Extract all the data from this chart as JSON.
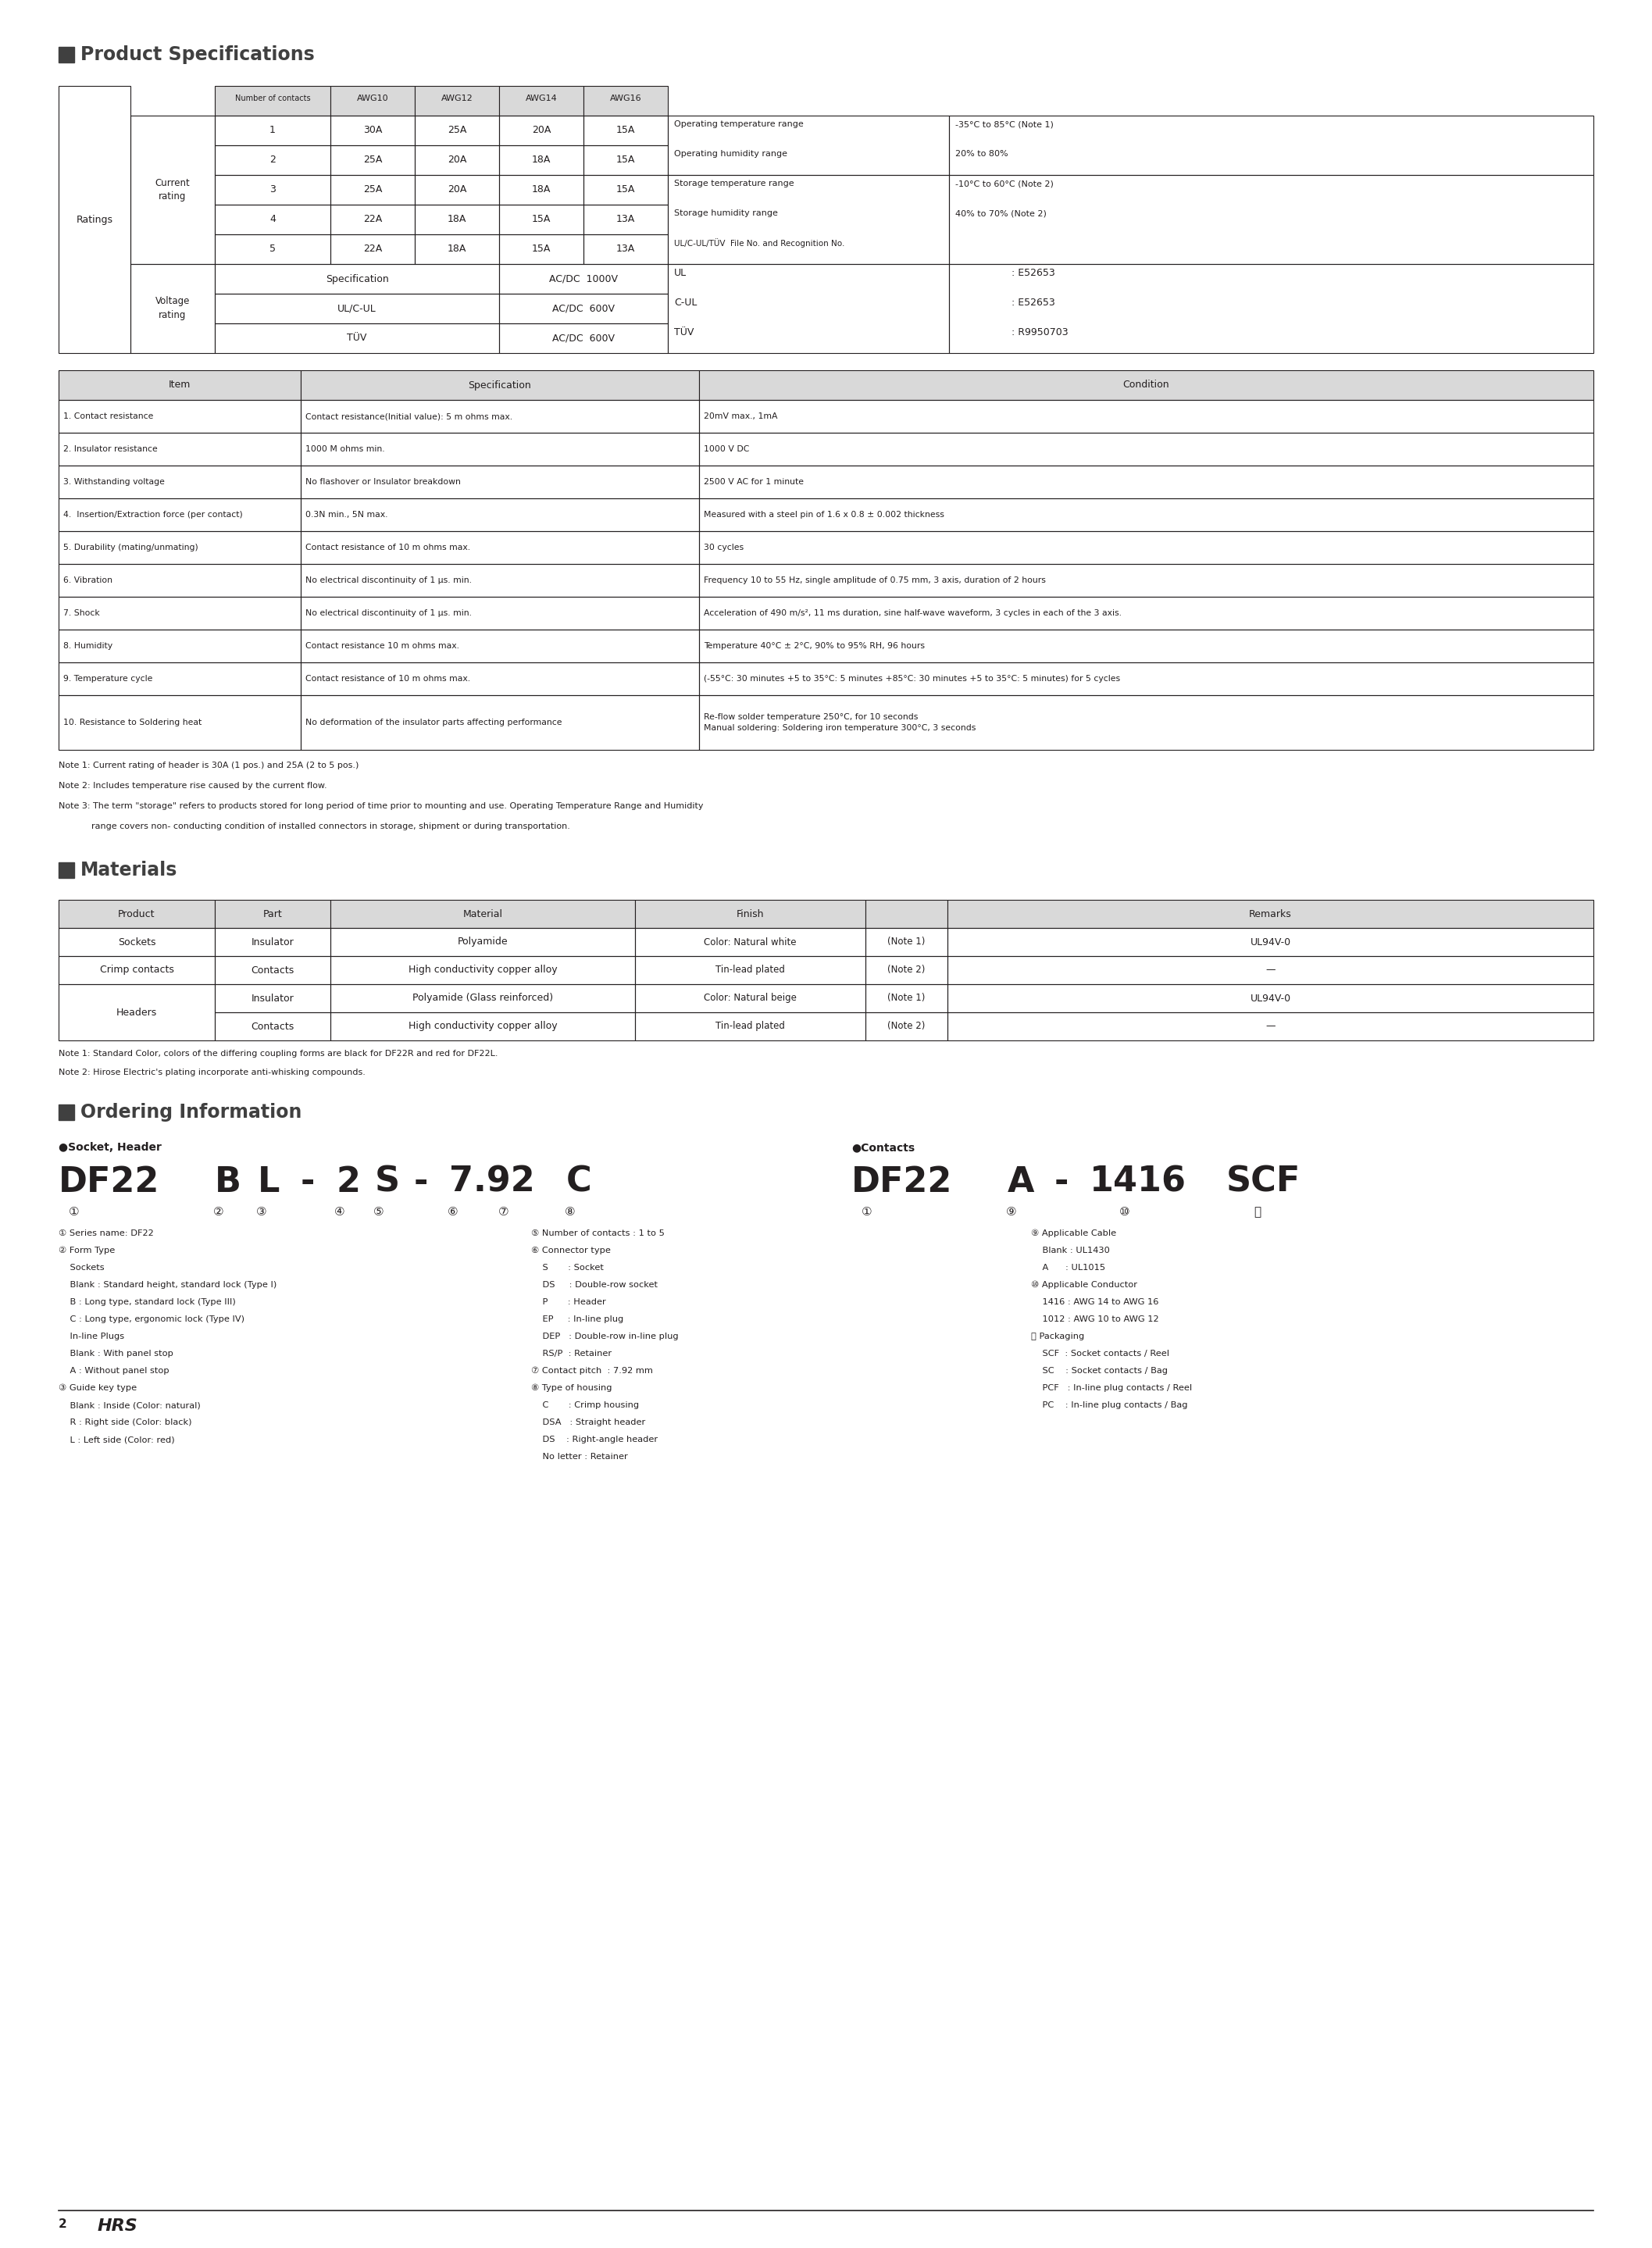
{
  "page_bg": "#ffffff",
  "text_color": "#231f20",
  "header_bg": "#d9d9d9",
  "section_header_color": "#404040",
  "title1": "Product Specifications",
  "title2": "Materials",
  "title3": "Ordering Information",
  "ratings_table": {
    "col_headers": [
      "Number of contacts",
      "AWG10",
      "AWG12",
      "AWG14",
      "AWG16"
    ],
    "current_rows": [
      [
        "1",
        "30A",
        "25A",
        "20A",
        "15A"
      ],
      [
        "2",
        "25A",
        "20A",
        "18A",
        "15A"
      ],
      [
        "3",
        "25A",
        "20A",
        "18A",
        "15A"
      ],
      [
        "4",
        "22A",
        "18A",
        "15A",
        "13A"
      ],
      [
        "5",
        "22A",
        "18A",
        "15A",
        "13A"
      ]
    ],
    "voltage_rows": [
      [
        "Specification",
        "AC/DC  1000V"
      ],
      [
        "UL/C-UL",
        "AC/DC  600V"
      ],
      [
        "TÜV",
        "AC/DC  600V"
      ]
    ],
    "right_col": [
      [
        "Operating temperature range",
        "-35°C to 85°C (Note 1)"
      ],
      [
        "Operating humidity range",
        "20% to 80%"
      ],
      [
        "Storage temperature range",
        "-10°C to 60°C (Note 2)"
      ],
      [
        "Storage humidity range",
        "40% to 70% (Note 2)"
      ],
      [
        "UL/C-UL/TÜV  File No. and Recognition No.",
        ""
      ],
      [
        "UL",
        ": E52653"
      ],
      [
        "C-UL",
        ": E52653"
      ],
      [
        "TÜV",
        ": R9950703"
      ]
    ]
  },
  "spec_table": {
    "rows": [
      [
        "1. Contact resistance",
        "Contact resistance(Initial value): 5 m ohms max.",
        "20mV max., 1mA"
      ],
      [
        "2. Insulator resistance",
        "1000 M ohms min.",
        "1000 V DC"
      ],
      [
        "3. Withstanding voltage",
        "No flashover or Insulator breakdown",
        "2500 V AC for 1 minute"
      ],
      [
        "4.  Insertion/Extraction force (per contact)",
        "0.3N min., 5N max.",
        "Measured with a steel pin of 1.6 x 0.8 ± 0.002 thickness"
      ],
      [
        "5. Durability (mating/unmating)",
        "Contact resistance of 10 m ohms max.",
        "30 cycles"
      ],
      [
        "6. Vibration",
        "No electrical discontinuity of 1 μs. min.",
        "Frequency 10 to 55 Hz, single amplitude of 0.75 mm, 3 axis, duration of 2 hours"
      ],
      [
        "7. Shock",
        "No electrical discontinuity of 1 μs. min.",
        "Acceleration of 490 m/s², 11 ms duration, sine half-wave waveform, 3 cycles in each of the 3 axis."
      ],
      [
        "8. Humidity",
        "Contact resistance 10 m ohms max.",
        "Temperature 40°C ± 2°C, 90% to 95% RH, 96 hours"
      ],
      [
        "9. Temperature cycle",
        "Contact resistance of 10 m ohms max.",
        "(-55°C: 30 minutes +5 to 35°C: 5 minutes +85°C: 30 minutes +5 to 35°C: 5 minutes) for 5 cycles"
      ],
      [
        "10. Resistance to Soldering heat",
        "No deformation of the insulator parts affecting performance",
        "Re-flow solder temperature 250°C, for 10 seconds\nManual soldering: Soldering iron temperature 300°C, 3 seconds"
      ]
    ]
  },
  "notes_prod": [
    "Note 1: Current rating of header is 30A (1 pos.) and 25A (2 to 5 pos.)",
    "Note 2: Includes temperature rise caused by the current flow.",
    "Note 3: The term \"storage\" refers to products stored for long period of time prior to mounting and use. Operating Temperature Range and Humidity",
    "            range covers non- conducting condition of installed connectors in storage, shipment or during transportation."
  ],
  "materials_table": {
    "rows": [
      [
        "Sockets",
        "Insulator",
        "Polyamide",
        "Color: Natural white",
        "(Note 1)",
        "UL94V-0"
      ],
      [
        "Crimp contacts",
        "Contacts",
        "High conductivity copper alloy",
        "Tin-lead plated",
        "(Note 2)",
        "—"
      ],
      [
        "Headers",
        "Insulator",
        "Polyamide (Glass reinforced)",
        "Color: Natural beige",
        "(Note 1)",
        "UL94V-0"
      ],
      [
        "",
        "Contacts",
        "High conductivity copper alloy",
        "Tin-lead plated",
        "(Note 2)",
        "—"
      ]
    ]
  },
  "notes_mat": [
    "Note 1: Standard Color, colors of the differing coupling forms are black for DF22R and red for DF22L.",
    "Note 2: Hirose Electric's plating incorporate anti-whisking compounds."
  ],
  "ordering_legend": [
    [
      "① Series name: DF22",
      "⑤ Number of contacts : 1 to 5",
      "⑨ Applicable Cable"
    ],
    [
      "② Form Type",
      "⑥ Connector type",
      "    Blank : UL1430"
    ],
    [
      "    Sockets",
      "    S       : Socket",
      "    A      : UL1015"
    ],
    [
      "    Blank : Standard height, standard lock (Type I)",
      "    DS     : Double-row socket",
      "⑩ Applicable Conductor"
    ],
    [
      "    B : Long type, standard lock (Type III)",
      "    P       : Header",
      "    1416 : AWG 14 to AWG 16"
    ],
    [
      "    C : Long type, ergonomic lock (Type IV)",
      "    EP     : In-line plug",
      "    1012 : AWG 10 to AWG 12"
    ],
    [
      "    In-line Plugs",
      "    DEP   : Double-row in-line plug",
      "⑪ Packaging"
    ],
    [
      "    Blank : With panel stop",
      "    RS/P  : Retainer",
      "    SCF  : Socket contacts / Reel"
    ],
    [
      "    A : Without panel stop",
      "⑦ Contact pitch  : 7.92 mm",
      "    SC    : Socket contacts / Bag"
    ],
    [
      "③ Guide key type",
      "⑧ Type of housing",
      "    PCF   : In-line plug contacts / Reel"
    ],
    [
      "    Blank : Inside (Color: natural)",
      "    C       : Crimp housing",
      "    PC    : In-line plug contacts / Bag"
    ],
    [
      "    R : Right side (Color: black)",
      "    DSA   : Straight header",
      ""
    ],
    [
      "    L : Left side (Color: red)",
      "    DS    : Right-angle header",
      ""
    ],
    [
      "",
      "    No letter : Retainer",
      ""
    ]
  ],
  "footer_text": "2",
  "hrs_logo": "HRS"
}
